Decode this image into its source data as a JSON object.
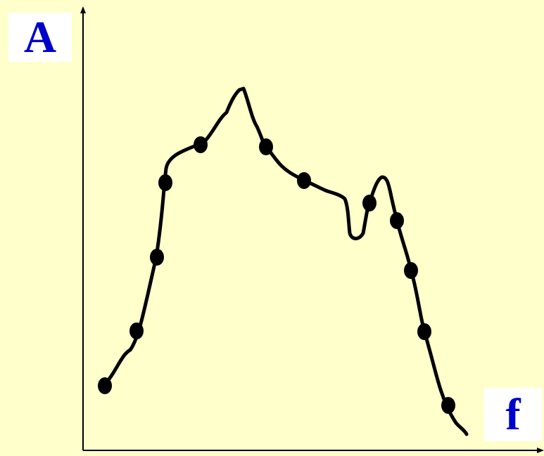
{
  "axes": {
    "y_label": "A",
    "x_label": "f"
  },
  "colors": {
    "background": "#FFFFCC",
    "label_text": "#0000CC",
    "label_box": "#FFFFFF",
    "curve": "#000000",
    "axis": "#000000"
  }
}
